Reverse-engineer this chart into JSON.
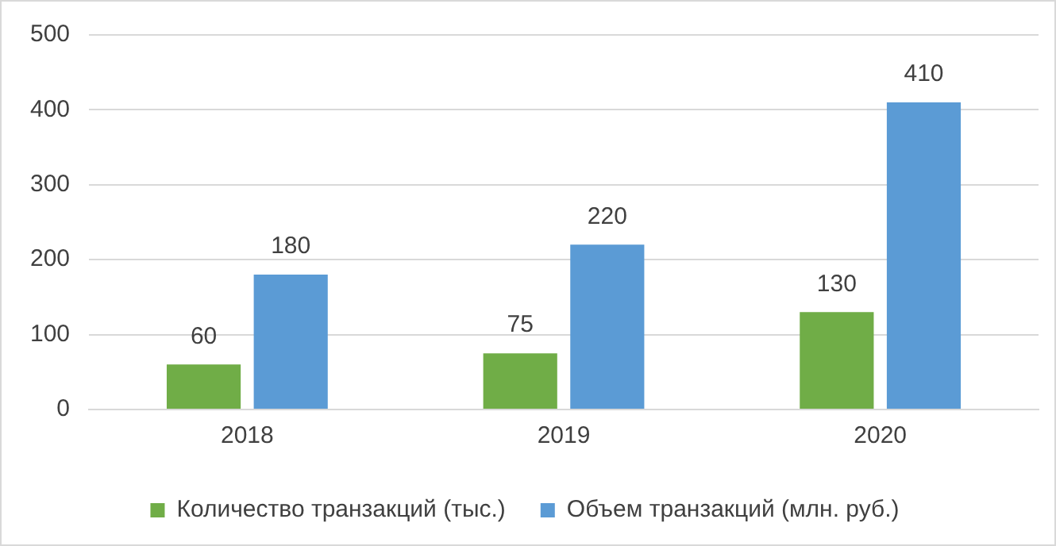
{
  "chart_data": {
    "type": "bar",
    "categories": [
      "2018",
      "2019",
      "2020"
    ],
    "series": [
      {
        "name": "Количество транзакций (тыс.)",
        "color": "#70ad47",
        "values": [
          60,
          75,
          130
        ]
      },
      {
        "name": "Объем транзакций (млн. руб.)",
        "color": "#5b9bd5",
        "values": [
          180,
          220,
          410
        ]
      }
    ],
    "ylim": [
      0,
      500
    ],
    "yticks": [
      0,
      100,
      200,
      300,
      400,
      500
    ],
    "grid": "y",
    "legend": "bottom",
    "data_labels": true
  }
}
